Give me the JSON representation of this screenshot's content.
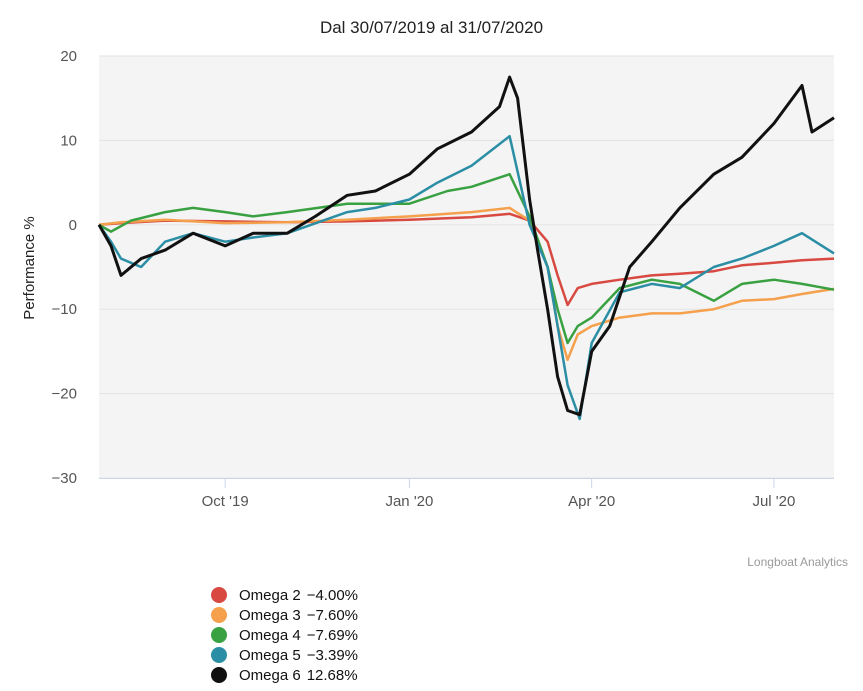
{
  "chart_data": {
    "type": "line",
    "title": "Dal 30/07/2019 al 31/07/2020",
    "ylabel": "Performance %",
    "xlabel": "",
    "ylim": [
      -30,
      20
    ],
    "yticks": [
      20,
      10,
      0,
      -10,
      -20,
      -30
    ],
    "ytick_labels": [
      "20",
      "10",
      "0",
      "−10",
      "−20",
      "−30"
    ],
    "xlim": [
      "2019-07-30",
      "2020-07-31"
    ],
    "xticks": [
      {
        "label": "Oct '19",
        "date": "2019-10-01"
      },
      {
        "label": "Jan '20",
        "date": "2020-01-01"
      },
      {
        "label": "Apr '20",
        "date": "2020-04-01"
      },
      {
        "label": "Jul '20",
        "date": "2020-07-01"
      }
    ],
    "credits": "Longboat Analytics",
    "series": [
      {
        "name": "Omega 2",
        "final_label": "-4.00%",
        "color": "#d84a41",
        "points": [
          [
            "2019-07-30",
            0
          ],
          [
            "2019-08-10",
            0.2
          ],
          [
            "2019-09-01",
            0.5
          ],
          [
            "2019-10-01",
            0.4
          ],
          [
            "2019-11-01",
            0.3
          ],
          [
            "2019-12-01",
            0.4
          ],
          [
            "2020-01-01",
            0.6
          ],
          [
            "2020-02-01",
            0.9
          ],
          [
            "2020-02-20",
            1.3
          ],
          [
            "2020-03-01",
            0.5
          ],
          [
            "2020-03-10",
            -2
          ],
          [
            "2020-03-15",
            -6
          ],
          [
            "2020-03-20",
            -9.5
          ],
          [
            "2020-03-25",
            -7.5
          ],
          [
            "2020-04-01",
            -7
          ],
          [
            "2020-04-15",
            -6.5
          ],
          [
            "2020-05-01",
            -6
          ],
          [
            "2020-05-15",
            -5.8
          ],
          [
            "2020-06-01",
            -5.5
          ],
          [
            "2020-06-15",
            -4.8
          ],
          [
            "2020-07-01",
            -4.5
          ],
          [
            "2020-07-15",
            -4.2
          ],
          [
            "2020-07-31",
            -4.0
          ]
        ]
      },
      {
        "name": "Omega 3",
        "final_label": "-7.60%",
        "color": "#f5a04c",
        "points": [
          [
            "2019-07-30",
            0
          ],
          [
            "2019-08-10",
            0.3
          ],
          [
            "2019-09-01",
            0.6
          ],
          [
            "2019-10-01",
            0.2
          ],
          [
            "2019-11-01",
            0.3
          ],
          [
            "2019-12-01",
            0.6
          ],
          [
            "2020-01-01",
            1
          ],
          [
            "2020-02-01",
            1.5
          ],
          [
            "2020-02-20",
            2
          ],
          [
            "2020-03-01",
            0.5
          ],
          [
            "2020-03-10",
            -5
          ],
          [
            "2020-03-15",
            -12
          ],
          [
            "2020-03-20",
            -16
          ],
          [
            "2020-03-25",
            -13
          ],
          [
            "2020-04-01",
            -12
          ],
          [
            "2020-04-15",
            -11
          ],
          [
            "2020-05-01",
            -10.5
          ],
          [
            "2020-05-15",
            -10.5
          ],
          [
            "2020-06-01",
            -10
          ],
          [
            "2020-06-15",
            -9
          ],
          [
            "2020-07-01",
            -8.8
          ],
          [
            "2020-07-15",
            -8.2
          ],
          [
            "2020-07-31",
            -7.6
          ]
        ]
      },
      {
        "name": "Omega 4",
        "final_label": "-7.69%",
        "color": "#3aa142",
        "points": [
          [
            "2019-07-30",
            0
          ],
          [
            "2019-08-05",
            -0.8
          ],
          [
            "2019-08-15",
            0.5
          ],
          [
            "2019-09-01",
            1.5
          ],
          [
            "2019-09-15",
            2
          ],
          [
            "2019-10-01",
            1.5
          ],
          [
            "2019-10-15",
            1
          ],
          [
            "2019-11-01",
            1.5
          ],
          [
            "2019-12-01",
            2.5
          ],
          [
            "2020-01-01",
            2.5
          ],
          [
            "2020-01-20",
            4
          ],
          [
            "2020-02-01",
            4.5
          ],
          [
            "2020-02-20",
            6
          ],
          [
            "2020-03-01",
            1
          ],
          [
            "2020-03-10",
            -5
          ],
          [
            "2020-03-15",
            -10
          ],
          [
            "2020-03-20",
            -14
          ],
          [
            "2020-03-25",
            -12
          ],
          [
            "2020-04-01",
            -11
          ],
          [
            "2020-04-15",
            -7.5
          ],
          [
            "2020-05-01",
            -6.5
          ],
          [
            "2020-05-15",
            -7
          ],
          [
            "2020-06-01",
            -9
          ],
          [
            "2020-06-15",
            -7
          ],
          [
            "2020-07-01",
            -6.5
          ],
          [
            "2020-07-15",
            -7
          ],
          [
            "2020-07-31",
            -7.69
          ]
        ]
      },
      {
        "name": "Omega 5",
        "final_label": "-3.39%",
        "color": "#2b8ea5",
        "points": [
          [
            "2019-07-30",
            0
          ],
          [
            "2019-08-05",
            -2
          ],
          [
            "2019-08-10",
            -4
          ],
          [
            "2019-08-20",
            -5
          ],
          [
            "2019-09-01",
            -2
          ],
          [
            "2019-09-15",
            -1
          ],
          [
            "2019-10-01",
            -2
          ],
          [
            "2019-10-15",
            -1.5
          ],
          [
            "2019-11-01",
            -1
          ],
          [
            "2019-12-01",
            1.5
          ],
          [
            "2019-12-15",
            2
          ],
          [
            "2020-01-01",
            3
          ],
          [
            "2020-01-15",
            5
          ],
          [
            "2020-02-01",
            7
          ],
          [
            "2020-02-20",
            10.5
          ],
          [
            "2020-03-01",
            0
          ],
          [
            "2020-03-10",
            -5
          ],
          [
            "2020-03-15",
            -12
          ],
          [
            "2020-03-20",
            -19
          ],
          [
            "2020-03-26",
            -23
          ],
          [
            "2020-04-01",
            -14
          ],
          [
            "2020-04-15",
            -8
          ],
          [
            "2020-05-01",
            -7
          ],
          [
            "2020-05-15",
            -7.5
          ],
          [
            "2020-06-01",
            -5
          ],
          [
            "2020-06-15",
            -4
          ],
          [
            "2020-07-01",
            -2.5
          ],
          [
            "2020-07-15",
            -1
          ],
          [
            "2020-07-31",
            -3.39
          ]
        ]
      },
      {
        "name": "Omega 6",
        "final_label": "12.68%",
        "color": "#111111",
        "points": [
          [
            "2019-07-30",
            0
          ],
          [
            "2019-08-05",
            -2.5
          ],
          [
            "2019-08-10",
            -6
          ],
          [
            "2019-08-20",
            -4
          ],
          [
            "2019-09-01",
            -3
          ],
          [
            "2019-09-15",
            -1
          ],
          [
            "2019-10-01",
            -2.5
          ],
          [
            "2019-10-15",
            -1
          ],
          [
            "2019-11-01",
            -1
          ],
          [
            "2019-11-15",
            1
          ],
          [
            "2019-12-01",
            3.5
          ],
          [
            "2019-12-15",
            4
          ],
          [
            "2020-01-01",
            6
          ],
          [
            "2020-01-15",
            9
          ],
          [
            "2020-02-01",
            11
          ],
          [
            "2020-02-15",
            14
          ],
          [
            "2020-02-20",
            17.5
          ],
          [
            "2020-02-24",
            15
          ],
          [
            "2020-03-01",
            3
          ],
          [
            "2020-03-05",
            -3
          ],
          [
            "2020-03-10",
            -10
          ],
          [
            "2020-03-15",
            -18
          ],
          [
            "2020-03-20",
            -22
          ],
          [
            "2020-03-26",
            -22.5
          ],
          [
            "2020-04-01",
            -15
          ],
          [
            "2020-04-10",
            -12
          ],
          [
            "2020-04-20",
            -5
          ],
          [
            "2020-05-01",
            -2
          ],
          [
            "2020-05-15",
            2
          ],
          [
            "2020-06-01",
            6
          ],
          [
            "2020-06-15",
            8
          ],
          [
            "2020-07-01",
            12
          ],
          [
            "2020-07-15",
            16.5
          ],
          [
            "2020-07-20",
            11
          ],
          [
            "2020-07-31",
            12.68
          ]
        ]
      }
    ]
  }
}
